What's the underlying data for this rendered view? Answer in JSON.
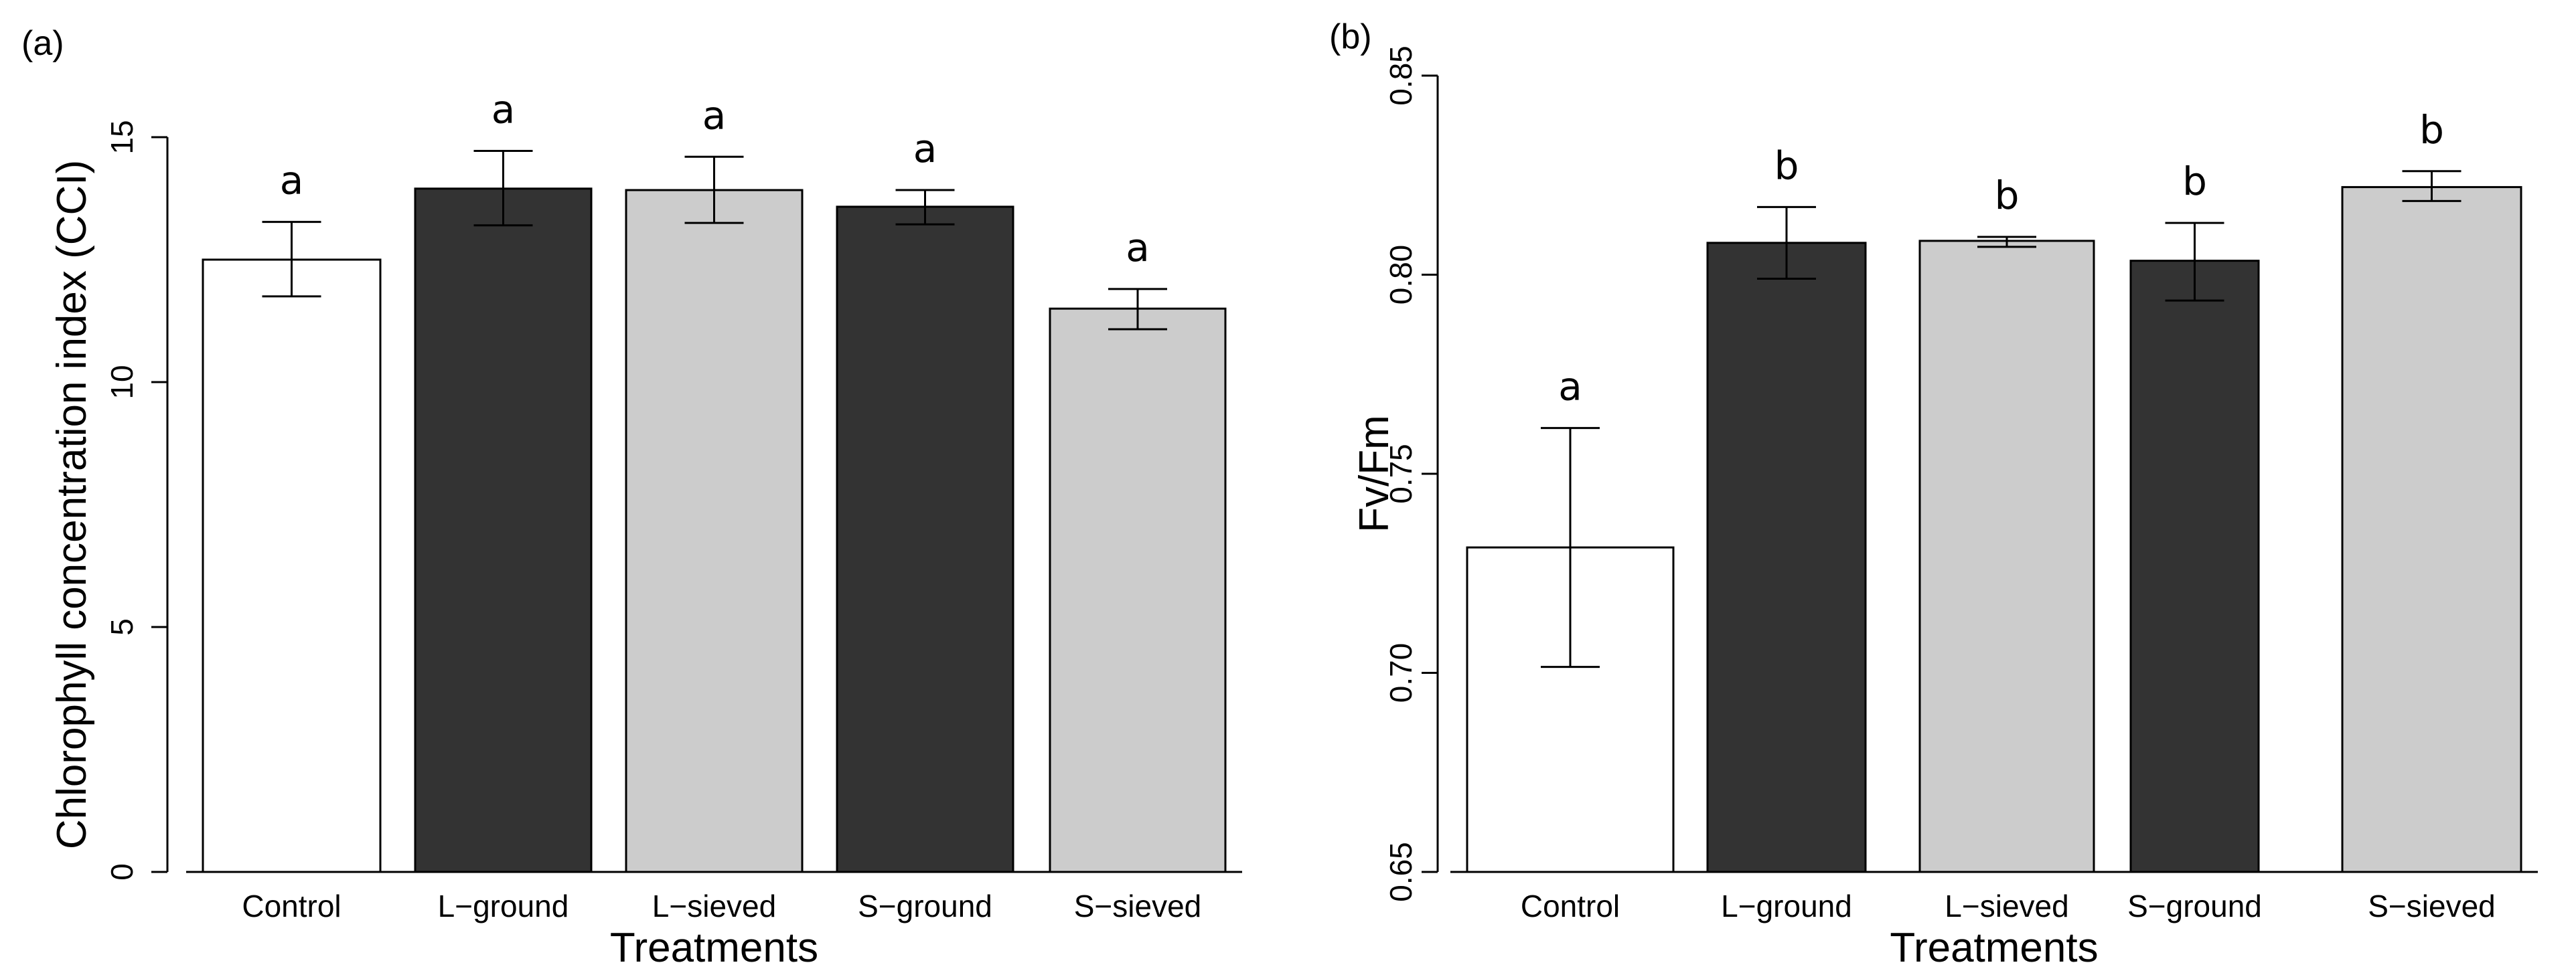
{
  "chart_data": [
    {
      "type": "bar",
      "panel_label": "(a)",
      "categories": [
        "Control",
        "L−ground",
        "L−sieved",
        "S−ground",
        "S−sieved"
      ],
      "values": [
        12.5,
        13.95,
        13.92,
        13.58,
        11.5
      ],
      "error_low": [
        11.75,
        13.2,
        13.25,
        13.22,
        11.08
      ],
      "error_high": [
        13.27,
        14.72,
        14.6,
        13.92,
        11.9
      ],
      "significance": [
        "a",
        "a",
        "a",
        "a",
        "a"
      ],
      "bar_colors": [
        "#ffffff",
        "#333333",
        "#cccccc",
        "#333333",
        "#cccccc"
      ],
      "xlabel": "Treatments",
      "ylabel": "Chlorophyll concentration index (CCI)",
      "ylim": [
        0,
        15
      ],
      "yticks": [
        0,
        5,
        10,
        15
      ],
      "ytick_labels": [
        "0",
        "5",
        "10",
        "15"
      ],
      "grid": false
    },
    {
      "type": "bar",
      "panel_label": "(b)",
      "categories": [
        "Control",
        "L−ground",
        "L−sieved",
        "S−ground",
        "S−sieved"
      ],
      "values": [
        0.7315,
        0.808,
        0.8085,
        0.8035,
        0.822
      ],
      "error_low": [
        0.7015,
        0.799,
        0.807,
        0.7935,
        0.8185
      ],
      "error_high": [
        0.7615,
        0.817,
        0.8095,
        0.813,
        0.826
      ],
      "significance": [
        "a",
        "b",
        "b",
        "b",
        "b"
      ],
      "bar_colors": [
        "#ffffff",
        "#333333",
        "#cccccc",
        "#333333",
        "#cccccc"
      ],
      "xlabel": "Treatments",
      "ylabel": "Fv/Fm",
      "ylim": [
        0.65,
        0.85
      ],
      "yticks": [
        0.65,
        0.7,
        0.75,
        0.8,
        0.85
      ],
      "ytick_labels": [
        "0.65",
        "0.70",
        "0.75",
        "0.80",
        "0.85"
      ],
      "grid": false
    }
  ]
}
